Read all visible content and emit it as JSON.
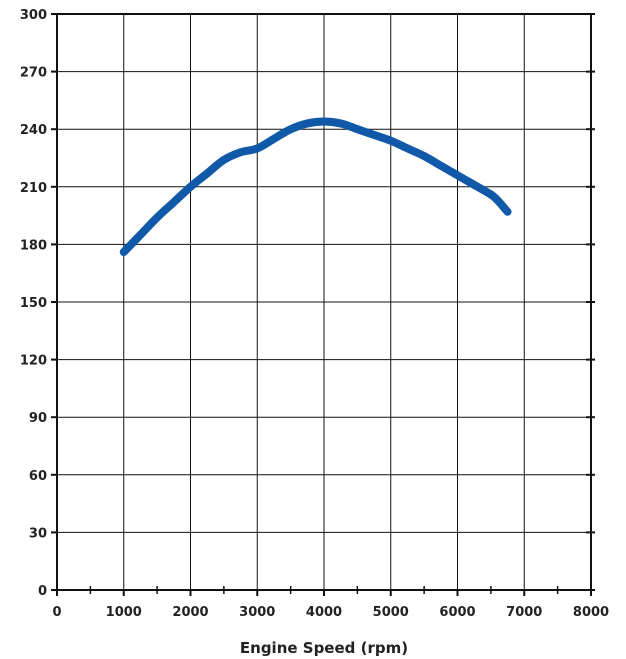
{
  "chart_data": {
    "type": "line",
    "title": "",
    "xlabel": "Engine Speed (rpm)",
    "ylabel": "",
    "xlim": [
      0,
      8000
    ],
    "ylim": [
      0,
      300
    ],
    "xticks": [
      0,
      1000,
      2000,
      3000,
      4000,
      5000,
      6000,
      7000,
      8000
    ],
    "yticks": [
      0,
      30,
      60,
      90,
      120,
      150,
      180,
      210,
      240,
      270,
      300
    ],
    "grid": true,
    "legend": "none",
    "series": [
      {
        "color": "#1058a8",
        "x": [
          1000,
          1250,
          1500,
          1750,
          2000,
          2250,
          2500,
          2750,
          3000,
          3250,
          3500,
          3750,
          4000,
          4250,
          4500,
          4750,
          5000,
          5250,
          5500,
          5750,
          6000,
          6250,
          6500,
          6600,
          6750
        ],
        "y": [
          176,
          185,
          194,
          202,
          210,
          217,
          224,
          228,
          230,
          235,
          240,
          243,
          244,
          243,
          240,
          237,
          234,
          230,
          226,
          221,
          216,
          211,
          206,
          203,
          197
        ]
      }
    ]
  },
  "colors": {
    "background": "#ffffff",
    "axis": "#111111",
    "grid": "#111111",
    "line": "#1058a8"
  }
}
